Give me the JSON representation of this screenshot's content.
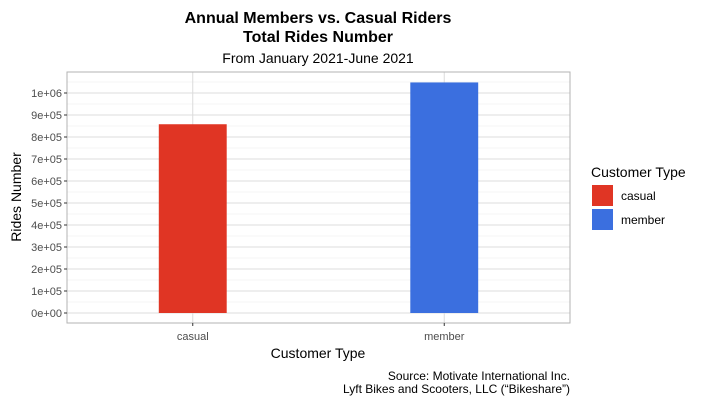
{
  "chart_data": {
    "type": "bar",
    "title_line1": "Annual Members vs. Casual Riders",
    "title_line2": "Total Rides Number",
    "subtitle": "From January 2021-June 2021",
    "xlabel": "Customer Type",
    "ylabel": "Rides Number",
    "categories": [
      "casual",
      "member"
    ],
    "values": [
      858000,
      1048000
    ],
    "colors": [
      "#e03524",
      "#3b6fdf"
    ],
    "ylim": [
      0,
      1050000
    ],
    "yticks": [
      0,
      100000,
      200000,
      300000,
      400000,
      500000,
      600000,
      700000,
      800000,
      900000,
      1000000
    ],
    "ytick_labels": [
      "0e+00",
      "1e+05",
      "2e+05",
      "3e+05",
      "4e+05",
      "5e+05",
      "6e+05",
      "7e+05",
      "8e+05",
      "9e+05",
      "1e+06"
    ],
    "grid": true,
    "legend": {
      "title": "Customer Type",
      "position": "right",
      "entries": [
        "casual",
        "member"
      ]
    },
    "caption_line1": "Source: Motivate International Inc.",
    "caption_line2": "Lyft Bikes and Scooters, LLC (“Bikeshare”)"
  }
}
